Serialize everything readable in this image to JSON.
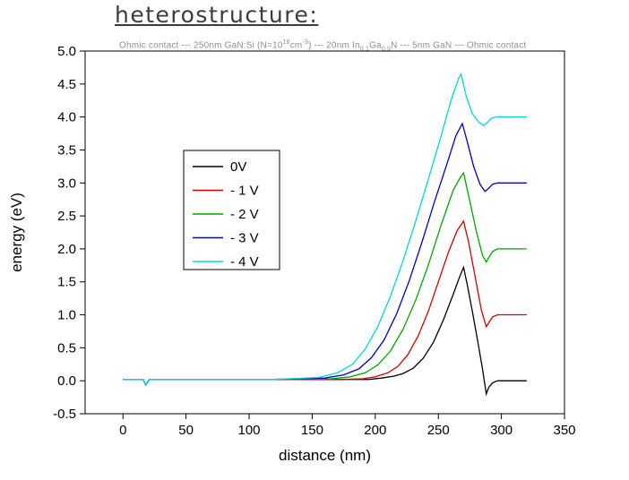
{
  "chart_data": {
    "type": "line",
    "title": "heterostructure:",
    "subtitle_parts": {
      "p1": "Ohmic contact --- 250nm GaN:Si (N=10",
      "sup1": "18",
      "p2": "cm",
      "sup2": "-3",
      "p3": ") --- 20nm In",
      "sub1": "0,1",
      "p4": "Ga",
      "sub2": "0,9",
      "p5": "N --- 5nm GaN --- Ohmic contact"
    },
    "xlabel": "distance (nm)",
    "ylabel": "energy (eV)",
    "xlim": [
      -30,
      350
    ],
    "ylim": [
      -0.5,
      5.0
    ],
    "grid": false,
    "legend_position": "upper-left-inside",
    "x_ticks": [
      0,
      50,
      100,
      150,
      200,
      250,
      300,
      350
    ],
    "x_tick_labels": [
      "0",
      "50",
      "100",
      "150",
      "200",
      "250",
      "300",
      "350"
    ],
    "y_ticks": [
      -0.5,
      0.0,
      0.5,
      1.0,
      1.5,
      2.0,
      2.5,
      3.0,
      3.5,
      4.0,
      4.5,
      5.0
    ],
    "y_tick_labels": [
      "-0.5",
      "0.0",
      "0.5",
      "1.0",
      "1.5",
      "2.0",
      "2.5",
      "3.0",
      "3.5",
      "4.0",
      "4.5",
      "5.0"
    ],
    "series": [
      {
        "name": "0V",
        "color": "#000000",
        "peak": 1.72,
        "plateau": 0.0,
        "points": [
          [
            0,
            0.02
          ],
          [
            16,
            0.02
          ],
          [
            18,
            -0.06
          ],
          [
            21,
            0.02
          ],
          [
            60,
            0.02
          ],
          [
            120,
            0.02
          ],
          [
            170,
            0.02
          ],
          [
            195,
            0.02
          ],
          [
            205,
            0.04
          ],
          [
            215,
            0.07
          ],
          [
            222,
            0.11
          ],
          [
            230,
            0.19
          ],
          [
            238,
            0.34
          ],
          [
            246,
            0.58
          ],
          [
            254,
            0.92
          ],
          [
            262,
            1.32
          ],
          [
            267,
            1.58
          ],
          [
            270,
            1.72
          ],
          [
            273,
            1.45
          ],
          [
            277,
            1.05
          ],
          [
            281,
            0.62
          ],
          [
            285,
            0.18
          ],
          [
            288,
            -0.2
          ],
          [
            290,
            -0.1
          ],
          [
            293,
            -0.03
          ],
          [
            297,
            0.0
          ],
          [
            320,
            0.0
          ]
        ]
      },
      {
        "name": "- 1 V",
        "color": "#d40000",
        "peak": 2.42,
        "plateau": 1.0,
        "points": [
          [
            0,
            0.02
          ],
          [
            16,
            0.02
          ],
          [
            18,
            -0.06
          ],
          [
            21,
            0.02
          ],
          [
            120,
            0.02
          ],
          [
            170,
            0.02
          ],
          [
            190,
            0.03
          ],
          [
            200,
            0.06
          ],
          [
            210,
            0.12
          ],
          [
            218,
            0.22
          ],
          [
            226,
            0.4
          ],
          [
            234,
            0.68
          ],
          [
            242,
            1.05
          ],
          [
            250,
            1.5
          ],
          [
            258,
            1.95
          ],
          [
            265,
            2.28
          ],
          [
            270,
            2.42
          ],
          [
            274,
            2.1
          ],
          [
            279,
            1.6
          ],
          [
            284,
            1.08
          ],
          [
            288,
            0.82
          ],
          [
            290,
            0.88
          ],
          [
            293,
            0.97
          ],
          [
            297,
            1.0
          ],
          [
            320,
            1.0
          ]
        ]
      },
      {
        "name": "- 2 V",
        "color": "#00a800",
        "peak": 3.15,
        "plateau": 2.0,
        "points": [
          [
            0,
            0.02
          ],
          [
            16,
            0.02
          ],
          [
            18,
            -0.06
          ],
          [
            21,
            0.02
          ],
          [
            120,
            0.02
          ],
          [
            165,
            0.03
          ],
          [
            180,
            0.06
          ],
          [
            192,
            0.12
          ],
          [
            202,
            0.24
          ],
          [
            212,
            0.45
          ],
          [
            222,
            0.78
          ],
          [
            232,
            1.22
          ],
          [
            242,
            1.75
          ],
          [
            252,
            2.35
          ],
          [
            262,
            2.9
          ],
          [
            268,
            3.1
          ],
          [
            270,
            3.15
          ],
          [
            275,
            2.72
          ],
          [
            280,
            2.28
          ],
          [
            285,
            1.9
          ],
          [
            288,
            1.8
          ],
          [
            290,
            1.87
          ],
          [
            293,
            1.96
          ],
          [
            297,
            2.0
          ],
          [
            320,
            2.0
          ]
        ]
      },
      {
        "name": "- 3 V",
        "color": "#0000cc",
        "peak": 3.9,
        "plateau": 3.0,
        "points": [
          [
            0,
            0.02
          ],
          [
            16,
            0.02
          ],
          [
            18,
            -0.06
          ],
          [
            21,
            0.02
          ],
          [
            120,
            0.02
          ],
          [
            160,
            0.04
          ],
          [
            175,
            0.09
          ],
          [
            187,
            0.18
          ],
          [
            197,
            0.35
          ],
          [
            207,
            0.62
          ],
          [
            217,
            1.02
          ],
          [
            227,
            1.52
          ],
          [
            237,
            2.1
          ],
          [
            247,
            2.72
          ],
          [
            257,
            3.3
          ],
          [
            264,
            3.72
          ],
          [
            269,
            3.9
          ],
          [
            273,
            3.62
          ],
          [
            278,
            3.25
          ],
          [
            283,
            2.98
          ],
          [
            287,
            2.87
          ],
          [
            290,
            2.92
          ],
          [
            293,
            2.98
          ],
          [
            297,
            3.0
          ],
          [
            320,
            3.0
          ]
        ]
      },
      {
        "name": "- 4 V",
        "color": "#00d8d8",
        "peak": 4.65,
        "plateau": 4.0,
        "points": [
          [
            0,
            0.02
          ],
          [
            16,
            0.02
          ],
          [
            18,
            -0.06
          ],
          [
            21,
            0.02
          ],
          [
            120,
            0.02
          ],
          [
            155,
            0.05
          ],
          [
            170,
            0.12
          ],
          [
            182,
            0.25
          ],
          [
            192,
            0.48
          ],
          [
            202,
            0.82
          ],
          [
            212,
            1.28
          ],
          [
            222,
            1.82
          ],
          [
            232,
            2.42
          ],
          [
            242,
            3.05
          ],
          [
            252,
            3.7
          ],
          [
            260,
            4.25
          ],
          [
            266,
            4.58
          ],
          [
            268,
            4.65
          ],
          [
            272,
            4.32
          ],
          [
            277,
            4.05
          ],
          [
            282,
            3.92
          ],
          [
            286,
            3.87
          ],
          [
            289,
            3.92
          ],
          [
            292,
            3.98
          ],
          [
            296,
            4.0
          ],
          [
            320,
            4.0
          ]
        ]
      }
    ]
  }
}
